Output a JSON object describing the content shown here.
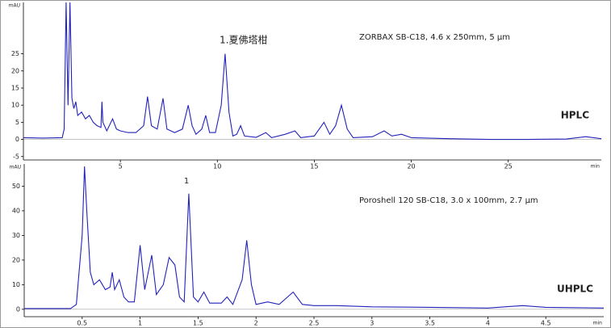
{
  "chart_data": [
    {
      "type": "line",
      "y_label": "mAU",
      "x_label": "min",
      "color": "#2222bb",
      "xlim": [
        0,
        29.8
      ],
      "ylim": [
        -6,
        40
      ],
      "xticks": [
        5,
        10,
        15,
        20,
        25
      ],
      "yticks": [
        -5,
        0,
        5,
        10,
        15,
        20,
        25
      ],
      "annotations": [
        "1.夏佛塔柑",
        "ZORBAX SB-C18, 4.6 x 250mm, 5 µm",
        "HPLC"
      ],
      "x": [
        0,
        1,
        2,
        2.1,
        2.2,
        2.3,
        2.4,
        2.5,
        2.6,
        2.7,
        2.8,
        3,
        3.2,
        3.4,
        3.6,
        3.8,
        4.0,
        4.05,
        4.1,
        4.3,
        4.6,
        4.8,
        5.0,
        5.4,
        5.8,
        6.2,
        6.4,
        6.6,
        6.9,
        7.2,
        7.4,
        7.8,
        8.2,
        8.5,
        8.7,
        8.9,
        9.2,
        9.4,
        9.6,
        9.9,
        10.2,
        10.4,
        10.6,
        10.8,
        11.0,
        11.2,
        11.4,
        12,
        12.5,
        12.8,
        13.5,
        14,
        14.3,
        15,
        15.5,
        15.8,
        16.1,
        16.4,
        16.7,
        17,
        18,
        18.6,
        19,
        19.5,
        20,
        22,
        24,
        26,
        28,
        29,
        29.8
      ],
      "values": [
        0.5,
        0.4,
        0.5,
        3,
        40,
        10,
        40,
        12,
        9,
        11,
        7,
        8,
        6,
        7,
        5,
        4,
        3.5,
        11,
        5,
        2.5,
        6,
        3,
        2.5,
        2,
        2,
        4,
        12.5,
        4,
        3,
        12,
        3,
        2,
        3,
        10,
        4,
        1.5,
        3,
        7,
        2,
        2,
        10,
        25,
        8,
        1,
        1.5,
        4,
        1,
        0.6,
        2,
        0.5,
        1.5,
        2.5,
        0.5,
        1,
        5,
        1.5,
        4,
        10,
        3,
        0.5,
        0.8,
        2.5,
        1,
        1.5,
        0.5,
        0.2,
        0,
        0,
        0.1,
        0.8,
        0.2
      ]
    },
    {
      "type": "line",
      "y_label": "mAU",
      "x_label": "min",
      "color": "#2222bb",
      "xlim": [
        0,
        5
      ],
      "ylim": [
        -3,
        59
      ],
      "xticks": [
        0.5,
        1,
        1.5,
        2,
        2.5,
        3,
        3.5,
        4,
        4.5
      ],
      "yticks": [
        0,
        10,
        20,
        30,
        40,
        50
      ],
      "annotations": [
        "1",
        "Poroshell 120 SB-C18, 3.0 x 100mm, 2.7 µm",
        "UHPLC"
      ],
      "x": [
        0,
        0.4,
        0.45,
        0.5,
        0.52,
        0.54,
        0.57,
        0.6,
        0.65,
        0.7,
        0.74,
        0.76,
        0.78,
        0.82,
        0.86,
        0.9,
        0.95,
        1.0,
        1.04,
        1.1,
        1.14,
        1.2,
        1.25,
        1.3,
        1.34,
        1.38,
        1.42,
        1.46,
        1.5,
        1.55,
        1.6,
        1.7,
        1.75,
        1.8,
        1.88,
        1.92,
        1.96,
        2.0,
        2.1,
        2.2,
        2.32,
        2.4,
        2.5,
        2.7,
        3.0,
        3.5,
        4.0,
        4.3,
        4.5,
        5
      ],
      "values": [
        0.3,
        0.3,
        2,
        30,
        58,
        40,
        15,
        10,
        12,
        8,
        9,
        15,
        8,
        12,
        5,
        3,
        3,
        26,
        8,
        22,
        6,
        10,
        21,
        18,
        5,
        3,
        47,
        5,
        3,
        7,
        2.5,
        2.5,
        5,
        2,
        12,
        28,
        10,
        2,
        3,
        2,
        7,
        2,
        1.5,
        1.5,
        1,
        0.8,
        0.5,
        1.5,
        0.8,
        0.5
      ]
    }
  ]
}
